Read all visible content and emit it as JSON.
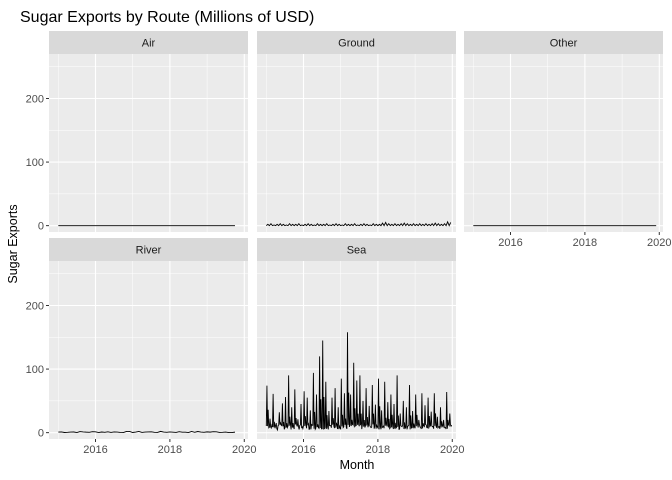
{
  "chart_data": {
    "type": "line",
    "title": "Sugar Exports by Route (Millions of USD)",
    "xlabel": "Month",
    "ylabel": "Sugar Exports",
    "facet_layout": "wrap, 3 columns",
    "shared_ylim": [
      -10,
      270
    ],
    "y_ticks": [
      0,
      100,
      200
    ],
    "xlim_years": [
      2014.75,
      2020.1
    ],
    "x_tick_labels": [
      "2016",
      "2018",
      "2020"
    ],
    "x_tick_years": [
      2016,
      2018,
      2020
    ],
    "grid": true,
    "panel_background": "#ebebeb",
    "strip_background": "#d9d9d9",
    "line_color": "#000000",
    "facets": [
      {
        "name": "Air",
        "start": "2015-01",
        "pattern": "flat",
        "n_months": 58,
        "baseline": 0,
        "spike_values": []
      },
      {
        "name": "Ground",
        "start": "2015-01",
        "pattern": "small-oscillation",
        "n_months": 60,
        "baseline": 0,
        "spike_values": [
          2,
          3,
          1,
          2,
          3,
          2,
          1,
          3,
          2,
          2,
          3,
          1,
          2,
          3,
          2,
          1,
          3,
          2,
          2,
          3,
          1,
          2,
          3,
          2,
          1,
          3,
          2,
          2,
          3,
          1,
          2,
          3,
          2,
          1,
          3,
          2,
          2,
          4,
          5,
          3,
          2,
          3,
          2,
          3,
          4,
          3,
          2,
          3,
          2,
          3,
          2,
          3,
          2,
          3,
          4,
          3,
          2,
          3,
          6,
          5
        ]
      },
      {
        "name": "Other",
        "start": "2015-01",
        "pattern": "flat",
        "n_months": 60,
        "baseline": 0,
        "spike_values": []
      },
      {
        "name": "River",
        "start": "2015-01",
        "pattern": "flat-wobble",
        "n_months": 58,
        "baseline": 1,
        "spike_values": []
      },
      {
        "name": "Sea",
        "start": "2015-01",
        "pattern": "multiple-spikes",
        "n_months": 60,
        "baseline": 5,
        "spike_values": [
          74,
          22,
          61,
          15,
          32,
          46,
          56,
          90,
          40,
          68,
          21,
          45,
          65,
          55,
          35,
          94,
          60,
          120,
          145,
          80,
          34,
          55,
          70,
          40,
          85,
          62,
          158,
          60,
          110,
          82,
          90,
          50,
          70,
          42,
          75,
          44,
          85,
          35,
          80,
          48,
          60,
          45,
          90,
          30,
          50,
          40,
          75,
          34,
          60,
          20,
          62,
          43,
          55,
          33,
          62,
          25,
          40,
          20,
          64,
          30
        ]
      }
    ]
  }
}
